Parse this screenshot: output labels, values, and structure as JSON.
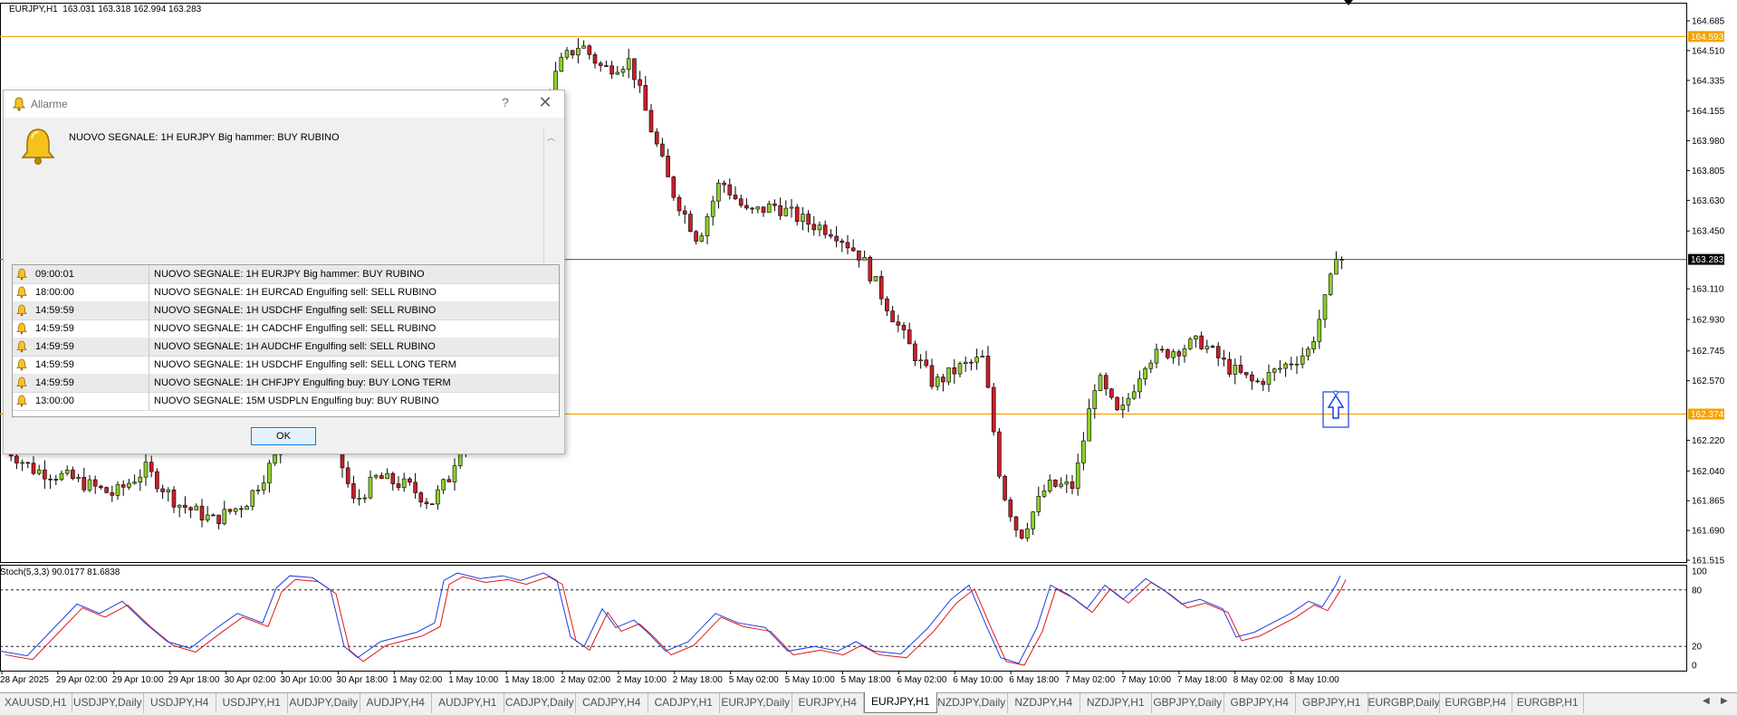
{
  "chart": {
    "symbol_header": "EURJPY,H1  163.031 163.318 162.994 163.283",
    "stoch_header": "Stoch(5,3,3) 90.0177 81.6838",
    "colors": {
      "bull": "#8dd02a",
      "bear": "#c8202a",
      "level": "#f5a300",
      "bid_line": "#707070",
      "stoch_main": "#1c3fe0",
      "stoch_signal": "#e01818"
    },
    "price_axis": [
      "164.685",
      "164.510",
      "164.335",
      "164.155",
      "163.980",
      "163.805",
      "163.630",
      "163.450",
      "163.110",
      "162.930",
      "162.745",
      "162.570",
      "162.220",
      "162.040",
      "161.865",
      "161.690",
      "161.515"
    ],
    "price_labels": {
      "upper_level": "164.593",
      "current": "163.283",
      "lower_level": "162.374"
    },
    "stoch_axis": [
      "100",
      "80",
      "20",
      "0"
    ],
    "time_axis": [
      "28 Apr 2025",
      "29 Apr 02:00",
      "29 Apr 10:00",
      "29 Apr 18:00",
      "30 Apr 02:00",
      "30 Apr 10:00",
      "30 Apr 18:00",
      "1 May 02:00",
      "1 May 10:00",
      "1 May 18:00",
      "2 May 02:00",
      "2 May 10:00",
      "2 May 18:00",
      "5 May 02:00",
      "5 May 10:00",
      "5 May 18:00",
      "6 May 02:00",
      "6 May 10:00",
      "6 May 18:00",
      "7 May 02:00",
      "7 May 10:00",
      "7 May 18:00",
      "8 May 02:00",
      "8 May 10:00"
    ],
    "signal_arrow_icon": "up-arrow-icon"
  },
  "dialog": {
    "title": "Allarme",
    "help": "?",
    "close": "✕",
    "message": "NUOVO SEGNALE: 1H EURJPY Big hammer: BUY RUBINO",
    "ok_label": "OK",
    "alarms": [
      {
        "time": "09:00:01",
        "message": "NUOVO SEGNALE: 1H EURJPY Big hammer: BUY RUBINO"
      },
      {
        "time": "18:00:00",
        "message": "NUOVO SEGNALE: 1H EURCAD Engulfing sell: SELL RUBINO"
      },
      {
        "time": "14:59:59",
        "message": "NUOVO SEGNALE: 1H USDCHF Engulfing sell: SELL RUBINO"
      },
      {
        "time": "14:59:59",
        "message": "NUOVO SEGNALE: 1H CADCHF Engulfing sell: SELL RUBINO"
      },
      {
        "time": "14:59:59",
        "message": "NUOVO SEGNALE: 1H AUDCHF Engulfing sell: SELL RUBINO"
      },
      {
        "time": "14:59:59",
        "message": "NUOVO SEGNALE: 1H USDCHF Engulfing sell: SELL LONG TERM"
      },
      {
        "time": "14:59:59",
        "message": "NUOVO SEGNALE: 1H CHFJPY Engulfing buy: BUY LONG TERM"
      },
      {
        "time": "13:00:00",
        "message": "NUOVO SEGNALE: 15M USDPLN Engulfing buy: BUY RUBINO"
      }
    ]
  },
  "tabs": [
    {
      "label": "XAUUSD,H1"
    },
    {
      "label": "USDJPY,Daily"
    },
    {
      "label": "USDJPY,H4"
    },
    {
      "label": "USDJPY,H1"
    },
    {
      "label": "AUDJPY,Daily"
    },
    {
      "label": "AUDJPY,H4"
    },
    {
      "label": "AUDJPY,H1"
    },
    {
      "label": "CADJPY,Daily"
    },
    {
      "label": "CADJPY,H4"
    },
    {
      "label": "CADJPY,H1"
    },
    {
      "label": "EURJPY,Daily"
    },
    {
      "label": "EURJPY,H4"
    },
    {
      "label": "EURJPY,H1",
      "active": true
    },
    {
      "label": "NZDJPY,Daily"
    },
    {
      "label": "NZDJPY,H4"
    },
    {
      "label": "NZDJPY,H1"
    },
    {
      "label": "GBPJPY,Daily"
    },
    {
      "label": "GBPJPY,H4"
    },
    {
      "label": "GBPJPY,H1"
    },
    {
      "label": "EURGBP,Daily"
    },
    {
      "label": "EURGBP,H4"
    },
    {
      "label": "EURGBP,H1"
    }
  ]
}
